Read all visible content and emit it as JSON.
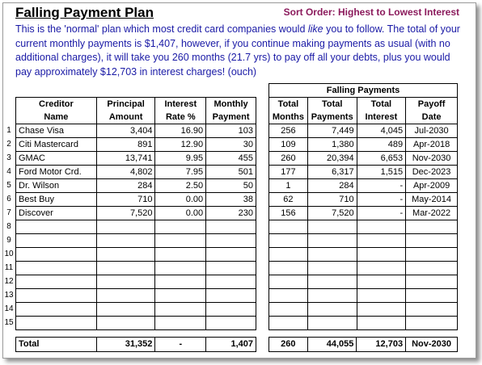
{
  "title": "Falling Payment Plan",
  "sort_order": "Sort Order: Highest to Lowest Interest",
  "description": {
    "part1": "This is the 'normal' plan which most credit card companies would ",
    "emph": "like",
    "part2": " you to follow. The total of your current monthly payments is $1,407, however, if you continue making payments as usual (with no additional charges), it will take you 260 months (21.7 yrs) to pay off all your debts, plus you would pay approximately $12,703 in interest charges! (ouch)"
  },
  "left_headers": {
    "creditor": [
      "Creditor",
      "Name"
    ],
    "principal": [
      "Principal",
      "Amount"
    ],
    "interest": [
      "Interest",
      "Rate %"
    ],
    "monthly": [
      "Monthly",
      "Payment"
    ]
  },
  "right_group_header": "Falling Payments",
  "right_headers": {
    "months": [
      "Total",
      "Months"
    ],
    "payments": [
      "Total",
      "Payments"
    ],
    "interest": [
      "Total",
      "Interest"
    ],
    "payoff": [
      "Payoff",
      "Date"
    ]
  },
  "row_numbers": [
    "1",
    "2",
    "3",
    "4",
    "5",
    "6",
    "7",
    "8",
    "9",
    "10",
    "11",
    "12",
    "13",
    "14",
    "15"
  ],
  "rows": [
    {
      "name": "Chase Visa",
      "principal": "3,404",
      "rate": "16.90",
      "payment": "103",
      "months": "256",
      "tpay": "7,449",
      "tint": "4,045",
      "date": "Jul-2030"
    },
    {
      "name": "Citi Mastercard",
      "principal": "891",
      "rate": "12.90",
      "payment": "30",
      "months": "109",
      "tpay": "1,380",
      "tint": "489",
      "date": "Apr-2018"
    },
    {
      "name": "GMAC",
      "principal": "13,741",
      "rate": "9.95",
      "payment": "455",
      "months": "260",
      "tpay": "20,394",
      "tint": "6,653",
      "date": "Nov-2030"
    },
    {
      "name": "Ford Motor Crd.",
      "principal": "4,802",
      "rate": "7.95",
      "payment": "501",
      "months": "177",
      "tpay": "6,317",
      "tint": "1,515",
      "date": "Dec-2023"
    },
    {
      "name": "Dr. Wilson",
      "principal": "284",
      "rate": "2.50",
      "payment": "50",
      "months": "1",
      "tpay": "284",
      "tint": "-",
      "date": "Apr-2009"
    },
    {
      "name": "Best Buy",
      "principal": "710",
      "rate": "0.00",
      "payment": "38",
      "months": "62",
      "tpay": "710",
      "tint": "-",
      "date": "May-2014"
    },
    {
      "name": "Discover",
      "principal": "7,520",
      "rate": "0.00",
      "payment": "230",
      "months": "156",
      "tpay": "7,520",
      "tint": "-",
      "date": "Mar-2022"
    },
    {
      "name": "",
      "principal": "",
      "rate": "",
      "payment": "",
      "months": "",
      "tpay": "",
      "tint": "",
      "date": ""
    },
    {
      "name": "",
      "principal": "",
      "rate": "",
      "payment": "",
      "months": "",
      "tpay": "",
      "tint": "",
      "date": ""
    },
    {
      "name": "",
      "principal": "",
      "rate": "",
      "payment": "",
      "months": "",
      "tpay": "",
      "tint": "",
      "date": ""
    },
    {
      "name": "",
      "principal": "",
      "rate": "",
      "payment": "",
      "months": "",
      "tpay": "",
      "tint": "",
      "date": ""
    },
    {
      "name": "",
      "principal": "",
      "rate": "",
      "payment": "",
      "months": "",
      "tpay": "",
      "tint": "",
      "date": ""
    },
    {
      "name": "",
      "principal": "",
      "rate": "",
      "payment": "",
      "months": "",
      "tpay": "",
      "tint": "",
      "date": ""
    },
    {
      "name": "",
      "principal": "",
      "rate": "",
      "payment": "",
      "months": "",
      "tpay": "",
      "tint": "",
      "date": ""
    },
    {
      "name": "",
      "principal": "",
      "rate": "",
      "payment": "",
      "months": "",
      "tpay": "",
      "tint": "",
      "date": ""
    }
  ],
  "totals": {
    "label": "Total",
    "principal": "31,352",
    "rate": "-",
    "payment": "1,407",
    "months": "260",
    "tpay": "44,055",
    "tint": "12,703",
    "date": "Nov-2030"
  }
}
